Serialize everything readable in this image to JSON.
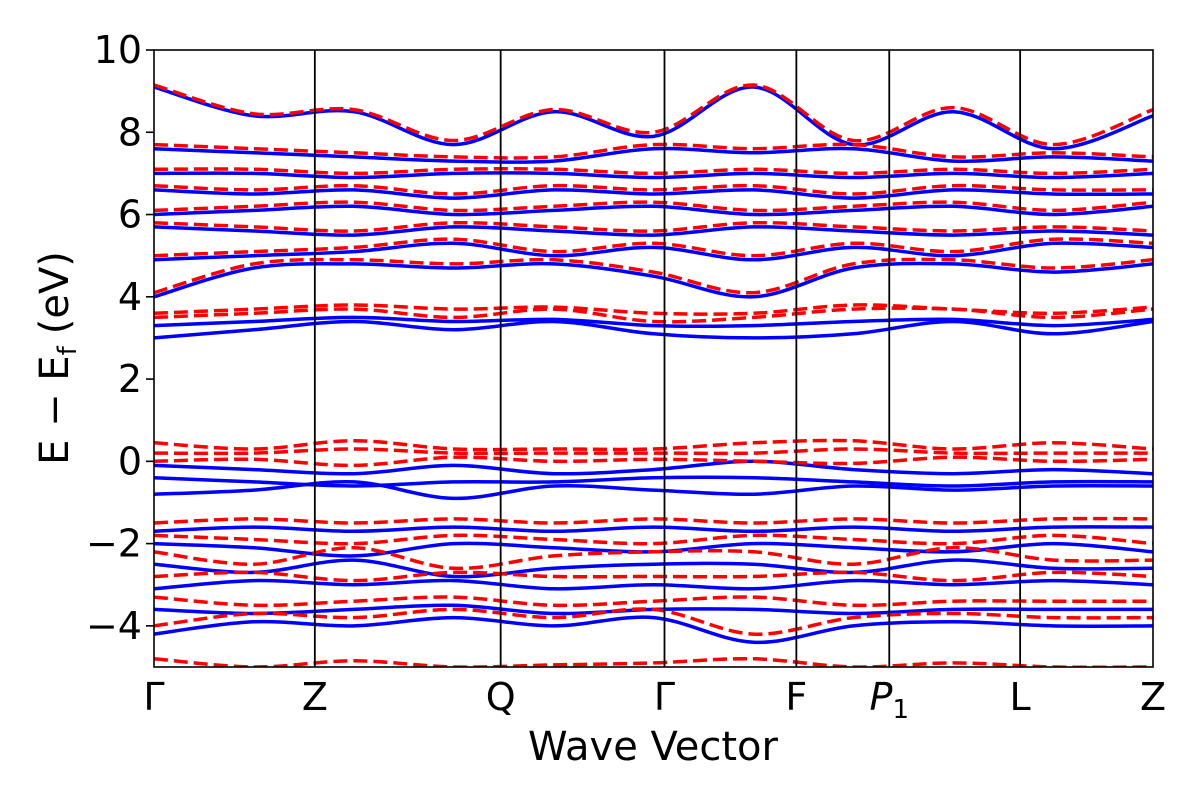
{
  "chart_data": {
    "type": "line",
    "title": "",
    "xlabel": "Wave Vector",
    "ylabel_main": "E − E",
    "ylabel_sub": "f",
    "ylabel_unit": "(eV)",
    "ylim": [
      -5,
      10
    ],
    "y_ticks": [
      -4,
      -2,
      0,
      2,
      4,
      6,
      8,
      10
    ],
    "y_tick_labels": [
      "−4",
      "−2",
      "0",
      "2",
      "4",
      "6",
      "8",
      "10"
    ],
    "xlim": [
      0,
      1
    ],
    "x_ticks": [
      {
        "pos": 0.0,
        "label": "Γ"
      },
      {
        "pos": 0.161,
        "label": "Z"
      },
      {
        "pos": 0.347,
        "label": "Q"
      },
      {
        "pos": 0.511,
        "label": "Γ"
      },
      {
        "pos": 0.643,
        "label": "F"
      },
      {
        "pos": 0.736,
        "label": "P",
        "sub": "1"
      },
      {
        "pos": 0.867,
        "label": "L"
      },
      {
        "pos": 1.0,
        "label": "Z"
      }
    ],
    "grid": false,
    "legend": "none",
    "series": [
      {
        "style": "solid",
        "color": "#0000ff",
        "bands": [
          [
            9.1,
            8.4,
            8.5,
            7.7,
            8.5,
            7.9,
            9.1,
            7.7,
            8.5,
            7.6,
            8.4
          ],
          [
            7.6,
            7.5,
            7.4,
            7.3,
            7.3,
            7.6,
            7.5,
            7.6,
            7.3,
            7.4,
            7.3
          ],
          [
            7.0,
            7.0,
            6.9,
            7.0,
            7.0,
            6.9,
            7.0,
            6.9,
            7.0,
            6.9,
            7.0
          ],
          [
            6.6,
            6.5,
            6.6,
            6.4,
            6.6,
            6.5,
            6.6,
            6.4,
            6.6,
            6.5,
            6.5
          ],
          [
            6.0,
            6.1,
            6.2,
            6.0,
            6.1,
            6.2,
            6.0,
            6.1,
            6.2,
            6.0,
            6.2
          ],
          [
            5.7,
            5.6,
            5.5,
            5.7,
            5.6,
            5.5,
            5.7,
            5.6,
            5.5,
            5.6,
            5.5
          ],
          [
            4.9,
            5.0,
            5.1,
            5.3,
            5.0,
            5.2,
            4.9,
            5.2,
            5.0,
            5.3,
            5.2
          ],
          [
            4.0,
            4.7,
            4.8,
            4.7,
            4.8,
            4.5,
            4.0,
            4.7,
            4.8,
            4.6,
            4.8
          ],
          [
            3.3,
            3.4,
            3.5,
            3.4,
            3.45,
            3.3,
            3.3,
            3.4,
            3.45,
            3.3,
            3.45
          ],
          [
            3.0,
            3.2,
            3.4,
            3.2,
            3.4,
            3.1,
            3.0,
            3.1,
            3.4,
            3.1,
            3.4
          ],
          [
            -0.1,
            -0.2,
            -0.3,
            -0.1,
            -0.3,
            -0.2,
            0.0,
            -0.2,
            -0.3,
            -0.2,
            -0.3
          ],
          [
            -0.4,
            -0.5,
            -0.6,
            -0.5,
            -0.5,
            -0.4,
            -0.4,
            -0.5,
            -0.6,
            -0.5,
            -0.5
          ],
          [
            -0.8,
            -0.7,
            -0.5,
            -0.9,
            -0.6,
            -0.7,
            -0.8,
            -0.6,
            -0.7,
            -0.6,
            -0.6
          ],
          [
            -1.7,
            -1.6,
            -1.7,
            -1.6,
            -1.7,
            -1.6,
            -1.7,
            -1.6,
            -1.7,
            -1.6,
            -1.6
          ],
          [
            -2.0,
            -2.1,
            -2.3,
            -2.0,
            -2.1,
            -2.2,
            -2.0,
            -2.1,
            -2.2,
            -2.0,
            -2.2
          ],
          [
            -2.5,
            -2.7,
            -2.4,
            -2.8,
            -2.6,
            -2.5,
            -2.5,
            -2.7,
            -2.4,
            -2.6,
            -2.6
          ],
          [
            -3.1,
            -2.9,
            -3.0,
            -2.9,
            -3.1,
            -3.0,
            -3.1,
            -2.9,
            -3.0,
            -2.9,
            -3.0
          ],
          [
            -3.6,
            -3.7,
            -3.6,
            -3.5,
            -3.7,
            -3.6,
            -3.6,
            -3.7,
            -3.6,
            -3.6,
            -3.6
          ],
          [
            -4.2,
            -3.9,
            -4.0,
            -3.8,
            -4.0,
            -3.8,
            -4.4,
            -4.0,
            -3.9,
            -4.0,
            -4.0
          ]
        ]
      },
      {
        "style": "dashed",
        "color": "#ff0000",
        "bands": [
          [
            9.15,
            8.45,
            8.55,
            7.8,
            8.55,
            8.0,
            9.15,
            7.8,
            8.6,
            7.7,
            8.55
          ],
          [
            7.7,
            7.6,
            7.5,
            7.4,
            7.4,
            7.7,
            7.6,
            7.7,
            7.4,
            7.5,
            7.4
          ],
          [
            7.1,
            7.1,
            7.0,
            7.1,
            7.1,
            7.0,
            7.1,
            7.0,
            7.1,
            7.0,
            7.1
          ],
          [
            6.7,
            6.6,
            6.7,
            6.5,
            6.7,
            6.6,
            6.7,
            6.5,
            6.7,
            6.6,
            6.6
          ],
          [
            6.1,
            6.2,
            6.3,
            6.1,
            6.2,
            6.3,
            6.1,
            6.2,
            6.3,
            6.1,
            6.3
          ],
          [
            5.8,
            5.7,
            5.6,
            5.8,
            5.7,
            5.6,
            5.8,
            5.7,
            5.6,
            5.7,
            5.6
          ],
          [
            5.0,
            5.1,
            5.2,
            5.4,
            5.1,
            5.3,
            5.0,
            5.3,
            5.1,
            5.4,
            5.3
          ],
          [
            4.1,
            4.8,
            4.9,
            4.8,
            4.9,
            4.6,
            4.1,
            4.8,
            4.9,
            4.7,
            4.9
          ],
          [
            3.6,
            3.7,
            3.8,
            3.7,
            3.75,
            3.6,
            3.6,
            3.8,
            3.7,
            3.6,
            3.75
          ],
          [
            3.5,
            3.6,
            3.7,
            3.5,
            3.7,
            3.4,
            3.5,
            3.7,
            3.7,
            3.5,
            3.7
          ],
          [
            0.45,
            0.3,
            0.5,
            0.3,
            0.3,
            0.3,
            0.45,
            0.5,
            0.3,
            0.45,
            0.3
          ],
          [
            0.2,
            0.2,
            0.3,
            0.2,
            0.2,
            0.2,
            0.2,
            0.3,
            0.2,
            0.2,
            0.2
          ],
          [
            0.0,
            0.05,
            -0.1,
            0.1,
            0.0,
            0.05,
            0.0,
            -0.05,
            0.1,
            0.0,
            0.05
          ],
          [
            -1.5,
            -1.4,
            -1.5,
            -1.4,
            -1.5,
            -1.4,
            -1.5,
            -1.4,
            -1.5,
            -1.4,
            -1.4
          ],
          [
            -1.8,
            -1.9,
            -2.0,
            -1.8,
            -1.9,
            -2.0,
            -1.8,
            -1.9,
            -2.0,
            -1.8,
            -2.0
          ],
          [
            -2.2,
            -2.5,
            -2.1,
            -2.6,
            -2.3,
            -2.2,
            -2.2,
            -2.5,
            -2.1,
            -2.4,
            -2.4
          ],
          [
            -2.8,
            -2.7,
            -2.9,
            -2.7,
            -2.8,
            -2.8,
            -2.8,
            -2.7,
            -2.9,
            -2.7,
            -2.8
          ],
          [
            -3.3,
            -3.5,
            -3.4,
            -3.3,
            -3.5,
            -3.4,
            -3.3,
            -3.5,
            -3.4,
            -3.4,
            -3.4
          ],
          [
            -4.0,
            -3.7,
            -3.8,
            -3.6,
            -3.8,
            -3.6,
            -4.2,
            -3.8,
            -3.7,
            -3.8,
            -3.8
          ],
          [
            -4.8,
            -5.0,
            -4.85,
            -5.0,
            -4.95,
            -4.9,
            -4.8,
            -5.0,
            -4.9,
            -5.0,
            -5.0
          ]
        ]
      }
    ]
  }
}
